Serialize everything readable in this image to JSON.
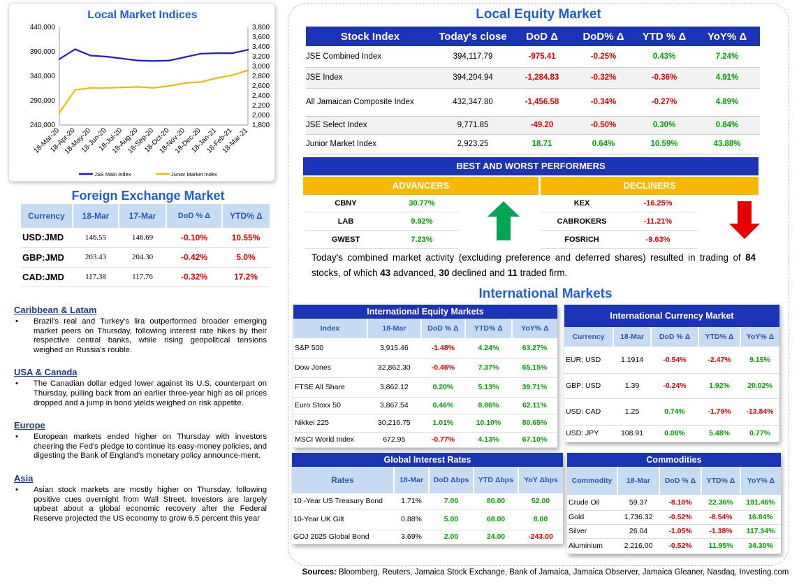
{
  "chart": {
    "title": "Local Market Indices",
    "left_axis": [
      "440,000",
      "390,000",
      "340,000",
      "290,000",
      "240,000"
    ],
    "right_axis": [
      "3,800",
      "3,600",
      "3,400",
      "3,200",
      "3,000",
      "2,800",
      "2,600",
      "2,400",
      "2,200",
      "2,000",
      "1,800"
    ],
    "x_ticks": [
      "18-Mar-20",
      "18-Apr-20",
      "18-May-20",
      "18-Jun-20",
      "18-Jul-20",
      "18-Aug-20",
      "18-Sep-20",
      "18-Oct-20",
      "18-Nov-20",
      "18-Dec-20",
      "18-Jan-21",
      "18-Feb-21",
      "18-Mar-21"
    ],
    "legend": [
      "JSE Main Index",
      "Junior Market Index"
    ],
    "colors": {
      "main": "#1a1adc",
      "junior": "#f2b800"
    }
  },
  "chart_data": {
    "type": "line",
    "title": "Local Market Indices",
    "x": [
      "18-Mar-20",
      "18-Apr-20",
      "18-May-20",
      "18-Jun-20",
      "18-Jul-20",
      "18-Aug-20",
      "18-Sep-20",
      "18-Oct-20",
      "18-Nov-20",
      "18-Dec-20",
      "18-Jan-21",
      "18-Feb-21",
      "18-Mar-21"
    ],
    "series": [
      {
        "name": "JSE Main Index",
        "axis": "left",
        "values": [
          375000,
          395000,
          382000,
          380000,
          376000,
          372000,
          371000,
          372000,
          379000,
          386000,
          387000,
          387000,
          394000
        ]
      },
      {
        "name": "Junior Market Index",
        "axis": "right",
        "values": [
          2050,
          2520,
          2560,
          2560,
          2570,
          2580,
          2560,
          2600,
          2660,
          2680,
          2760,
          2820,
          2920
        ]
      }
    ],
    "ylim_left": [
      240000,
      440000
    ],
    "ylim_right": [
      1800,
      3800
    ]
  },
  "fx": {
    "title": "Foreign Exchange Market",
    "headers": [
      "Currency",
      "18-Mar",
      "17-Mar",
      "DoD % Δ",
      "YTD% Δ"
    ],
    "rows": [
      {
        "cur": "USD:JMD",
        "d1": "146.55",
        "d2": "146.69",
        "dod": "-0.10%",
        "ytd": "10.55%"
      },
      {
        "cur": "GBP:JMD",
        "d1": "203.43",
        "d2": "204.30",
        "dod": "-0.42%",
        "ytd": "5.0%"
      },
      {
        "cur": "CAD:JMD",
        "d1": "117.38",
        "d2": "117.76",
        "dod": "-0.32%",
        "ytd": "17.2%"
      }
    ]
  },
  "news": [
    {
      "heading": "Caribbean & Latam",
      "text": "Brazil's real and Turkey's lira outperformed broader emerging market peers on Thursday, following interest rate hikes by their respective central banks, while rising geopolitical tensions weighed on Russia's rouble."
    },
    {
      "heading": "USA & Canada",
      "text": "The Canadian dollar edged lower against its U.S. counterpart on Thursday, pulling back from an earlier three-year high as oil prices dropped and a jump in bond yields weighed on risk appetite."
    },
    {
      "heading": "Europe",
      "text": "European markets ended higher on Thursday with investors cheering the Fed's pledge to continue its easy-money policies, and digesting the Bank of England's monetary policy announce-ment."
    },
    {
      "heading": "Asia",
      "text": "Asian stock markets are mostly higher on Thursday, following positive cues overnight from Wall Street. Investors are largely upbeat about a global economic recovery after the Federal Reserve projected the US economy to grow 6.5 percent this year"
    }
  ],
  "equity": {
    "title": "Local Equity Market",
    "headers": [
      "Stock Index",
      "Today's close",
      "DoD  Δ",
      "DoD% Δ",
      "YTD % Δ",
      "YoY% Δ"
    ],
    "rows": [
      {
        "name": "JSE Combined Index",
        "close": "394,117.79",
        "dod": "-975.41",
        "dodp": "-0.25%",
        "ytd": "0.43%",
        "yoy": "7.24%"
      },
      {
        "name": "JSE Index",
        "close": "394,204.94",
        "dod": "-1,284.83",
        "dodp": "-0.32%",
        "ytd": "-0.36%",
        "yoy": "4.91%"
      },
      {
        "name": "All Jamaican Composite Index",
        "close": "432,347.80",
        "dod": "-1,456.58",
        "dodp": "-0.34%",
        "ytd": "-0.27%",
        "yoy": "4.89%"
      },
      {
        "name": "JSE Select Index",
        "close": "9,771.85",
        "dod": "-49.20",
        "dodp": "-0.50%",
        "ytd": "0.30%",
        "yoy": "0.84%"
      },
      {
        "name": "Junior Market Index",
        "close": "2,923.25",
        "dod": "18.71",
        "dodp": "0.64%",
        "ytd": "10.59%",
        "yoy": "43.88%"
      }
    ]
  },
  "performers": {
    "title": "BEST AND WORST PERFORMERS",
    "advancers_label": "ADVANCERS",
    "decliners_label": "DECLINERS",
    "advancers": [
      {
        "name": "CBNY",
        "value": "30.77%"
      },
      {
        "name": "LAB",
        "value": "9.92%"
      },
      {
        "name": "GWEST",
        "value": "7.23%"
      }
    ],
    "decliners": [
      {
        "name": "KEX",
        "value": "-16.25%"
      },
      {
        "name": "CABROKERS",
        "value": "-11.21%"
      },
      {
        "name": "FOSRICH",
        "value": "-9.63%"
      }
    ]
  },
  "summary": {
    "pre": "Today's combined market activity (excluding preference and deferred shares) resulted in trading of ",
    "total": "84",
    "mid1": " stocks, of which ",
    "adv": "43",
    "mid2": " advanced, ",
    "dec": "30",
    "mid3": " declined and ",
    "firm": "11",
    "post": " traded firm."
  },
  "intl_title": "International Markets",
  "intl_equity": {
    "title": "International Equity Markets",
    "headers": [
      "Index",
      "18-Mar",
      "DoD % Δ",
      "YTD% Δ",
      "YoY% Δ"
    ],
    "rows": [
      {
        "name": "S&P 500",
        "v": "3,915.46",
        "dod": "-1.48%",
        "ytd": "4.24%",
        "yoy": "63.27%"
      },
      {
        "name": "Dow Jones",
        "v": "32,862.30",
        "dod": "-0.46%",
        "ytd": "7.37%",
        "yoy": "65.15%"
      },
      {
        "name": "FTSE All Share",
        "v": "3,862.12",
        "dod": "0.20%",
        "ytd": "5.13%",
        "yoy": "39.71%"
      },
      {
        "name": "Euro Stoxx 50",
        "v": "3,867.54",
        "dod": "0.46%",
        "ytd": "8.86%",
        "yoy": "62.11%"
      },
      {
        "name": "Nikkei 225",
        "v": "30,216.75",
        "dod": "1.01%",
        "ytd": "10.10%",
        "yoy": "80.65%"
      },
      {
        "name": "MSCI World Index",
        "v": "672.95",
        "dod": "-0.77%",
        "ytd": "4.13%",
        "yoy": "67.10%"
      }
    ]
  },
  "intl_fx": {
    "title": "International Currency Market",
    "headers": [
      "Currency",
      "18-Mar",
      "DoD % Δ",
      "YTD% Δ",
      "YoY% Δ"
    ],
    "rows": [
      {
        "name": "EUR: USD",
        "v": "1.1914",
        "dod": "-0.54%",
        "ytd": "-2.47%",
        "yoy": "9.15%"
      },
      {
        "name": "GBP: USD",
        "v": "1.39",
        "dod": "-0.24%",
        "ytd": "1.92%",
        "yoy": "20.02%"
      },
      {
        "name": "USD: CAD",
        "v": "1.25",
        "dod": "0.74%",
        "ytd": "-1.79%",
        "yoy": "-13.84%"
      },
      {
        "name": "USD: JPY",
        "v": "108.91",
        "dod": "0.06%",
        "ytd": "5.48%",
        "yoy": "0.77%"
      }
    ]
  },
  "rates": {
    "title": "Global Interest Rates",
    "headers": [
      "Rates",
      "18-Mar",
      "DoD Δbps",
      "YTD Δbps",
      "YoY Δbps"
    ],
    "rows": [
      {
        "name": "10 -Year US Treasury Bond",
        "v": "1.71%",
        "dod": "7.00",
        "ytd": "80.00",
        "yoy": "52.00"
      },
      {
        "name": "10-Year UK Gilt",
        "v": "0.88%",
        "dod": "5.00",
        "ytd": "68.00",
        "yoy": "8.00"
      },
      {
        "name": "GOJ 2025 Global Bond",
        "v": "3.69%",
        "dod": "2.00",
        "ytd": "24.00",
        "yoy": "-243.00"
      }
    ]
  },
  "commodities": {
    "title": "Commodities",
    "headers": [
      "Commodity",
      "18-Mar",
      "DoD % Δ",
      "YTD% Δ",
      "YoY% Δ"
    ],
    "rows": [
      {
        "name": "Crude Oil",
        "v": "59.37",
        "dod": "-8.10%",
        "ytd": "22.36%",
        "yoy": "191.46%"
      },
      {
        "name": "Gold",
        "v": "1,736.32",
        "dod": "-0.52%",
        "ytd": "-8.54%",
        "yoy": "16.84%"
      },
      {
        "name": "Silver",
        "v": "26.04",
        "dod": "-1.05%",
        "ytd": "-1.38%",
        "yoy": "117.34%"
      },
      {
        "name": "Aluminium",
        "v": "2,216.00",
        "dod": "-0.52%",
        "ytd": "11.95%",
        "yoy": "34.30%"
      }
    ]
  },
  "sources": {
    "label": "Sources:",
    "text": " Bloomberg, Reuters, Jamaica Stock Exchange, Bank of Jamaica, Jamaica Observer, Jamaica Gleaner, Nasdaq, Investing.com"
  }
}
